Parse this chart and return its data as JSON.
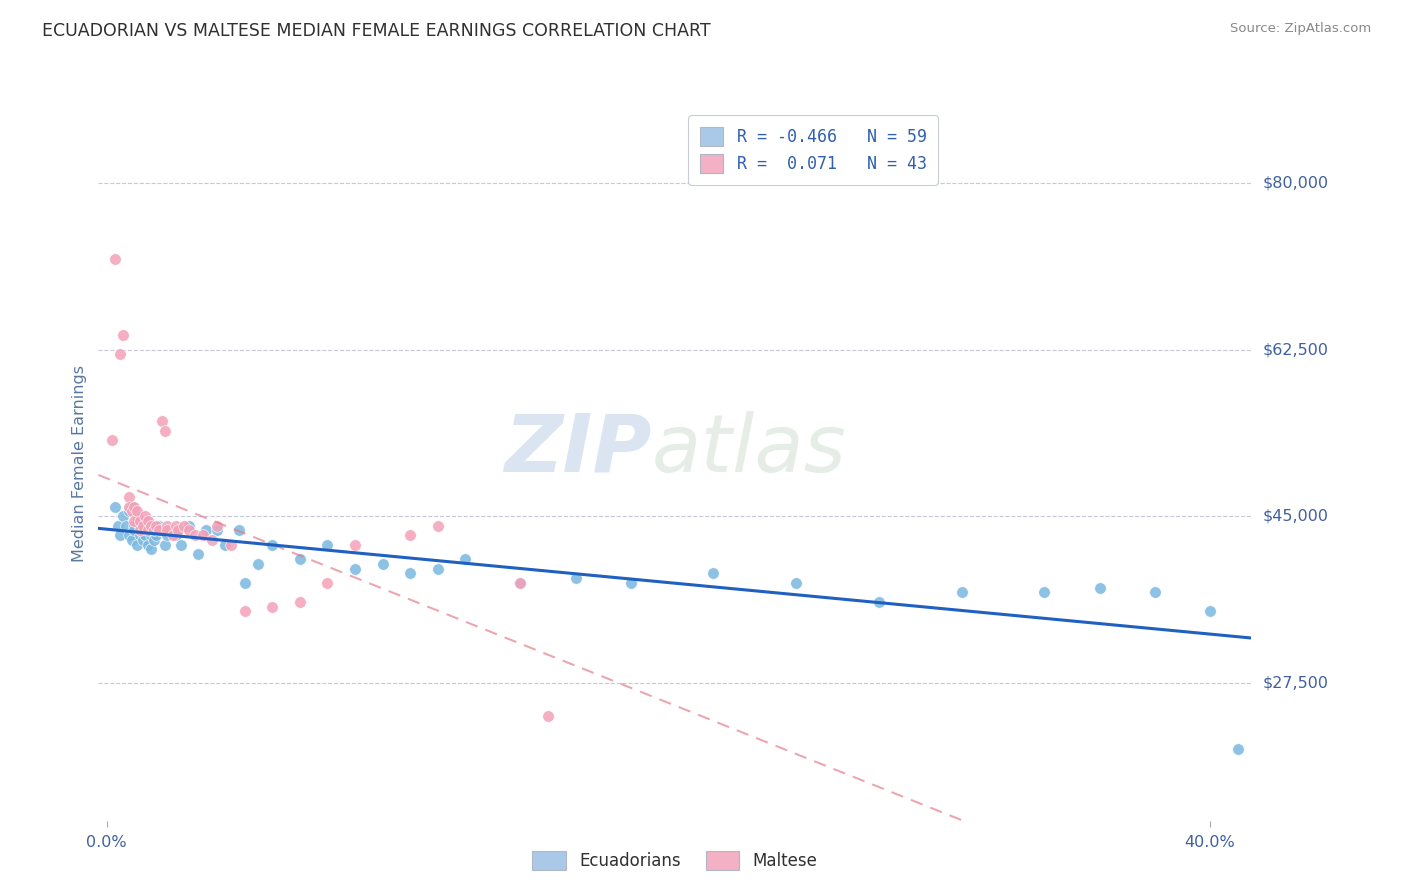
{
  "title": "ECUADORIAN VS MALTESE MEDIAN FEMALE EARNINGS CORRELATION CHART",
  "source": "Source: ZipAtlas.com",
  "ylabel": "Median Female Earnings",
  "watermark_part1": "ZIP",
  "watermark_part2": "atlas",
  "y_ticks": [
    27500,
    45000,
    62500,
    80000
  ],
  "y_tick_labels": [
    "$27,500",
    "$45,000",
    "$62,500",
    "$80,000"
  ],
  "y_lim": [
    13000,
    88000
  ],
  "x_lim": [
    -0.003,
    0.415
  ],
  "legend_top": [
    {
      "label_r": "R = ",
      "r_val": "-0.466",
      "label_n": "   N = ",
      "n_val": "59",
      "color": "#aac8e8"
    },
    {
      "label_r": "R =  ",
      "r_val": "0.071",
      "label_n": "  N = ",
      "n_val": "43",
      "color": "#f4b0c4"
    }
  ],
  "legend_bottom": [
    {
      "label": "Ecuadorians",
      "color": "#aac8e8"
    },
    {
      "label": "Maltese",
      "color": "#f4b0c4"
    }
  ],
  "ecuadorian_scatter_color": "#7ab8e0",
  "maltese_scatter_color": "#f4a0b8",
  "ecuadorian_line_color": "#2060c0",
  "maltese_line_color": "#e07888",
  "grid_color": "#c8c8d8",
  "title_color": "#303030",
  "axis_label_color": "#5878a0",
  "tick_label_color": "#4060a0",
  "background_color": "#ffffff",
  "ecuadorian_x": [
    0.003,
    0.004,
    0.005,
    0.006,
    0.007,
    0.008,
    0.008,
    0.009,
    0.009,
    0.01,
    0.01,
    0.011,
    0.011,
    0.012,
    0.012,
    0.013,
    0.013,
    0.014,
    0.014,
    0.015,
    0.015,
    0.016,
    0.016,
    0.017,
    0.018,
    0.019,
    0.02,
    0.021,
    0.022,
    0.025,
    0.027,
    0.03,
    0.033,
    0.036,
    0.04,
    0.043,
    0.048,
    0.05,
    0.055,
    0.06,
    0.07,
    0.08,
    0.09,
    0.1,
    0.11,
    0.12,
    0.13,
    0.15,
    0.17,
    0.19,
    0.22,
    0.25,
    0.28,
    0.31,
    0.34,
    0.36,
    0.38,
    0.4,
    0.41
  ],
  "ecuadorian_y": [
    46000,
    44000,
    43000,
    45000,
    44000,
    45500,
    43000,
    46000,
    42500,
    44000,
    43500,
    45000,
    42000,
    44000,
    43000,
    43500,
    42500,
    44000,
    43000,
    44500,
    42000,
    43000,
    41500,
    42500,
    43000,
    44000,
    43500,
    42000,
    43000,
    43000,
    42000,
    44000,
    41000,
    43500,
    43500,
    42000,
    43500,
    38000,
    40000,
    42000,
    40500,
    42000,
    39500,
    40000,
    39000,
    39500,
    40500,
    38000,
    38500,
    38000,
    39000,
    38000,
    36000,
    37000,
    37000,
    37500,
    37000,
    35000,
    20500
  ],
  "maltese_x": [
    0.002,
    0.003,
    0.005,
    0.006,
    0.008,
    0.008,
    0.009,
    0.01,
    0.01,
    0.011,
    0.012,
    0.012,
    0.013,
    0.014,
    0.015,
    0.015,
    0.016,
    0.017,
    0.018,
    0.019,
    0.02,
    0.021,
    0.022,
    0.022,
    0.024,
    0.025,
    0.026,
    0.028,
    0.03,
    0.032,
    0.035,
    0.038,
    0.04,
    0.045,
    0.05,
    0.06,
    0.07,
    0.08,
    0.09,
    0.11,
    0.12,
    0.15,
    0.16
  ],
  "maltese_y": [
    53000,
    72000,
    62000,
    64000,
    47000,
    46000,
    45500,
    46000,
    44500,
    45500,
    44500,
    43500,
    44000,
    45000,
    44500,
    43500,
    44000,
    43500,
    44000,
    43500,
    55000,
    54000,
    44000,
    43500,
    43000,
    44000,
    43500,
    44000,
    43500,
    43000,
    43000,
    42500,
    44000,
    42000,
    35000,
    35500,
    36000,
    38000,
    42000,
    43000,
    44000,
    38000,
    24000
  ],
  "r_ecuadorian": -0.466,
  "n_ecuadorian": 59,
  "r_maltese": 0.071,
  "n_maltese": 43
}
